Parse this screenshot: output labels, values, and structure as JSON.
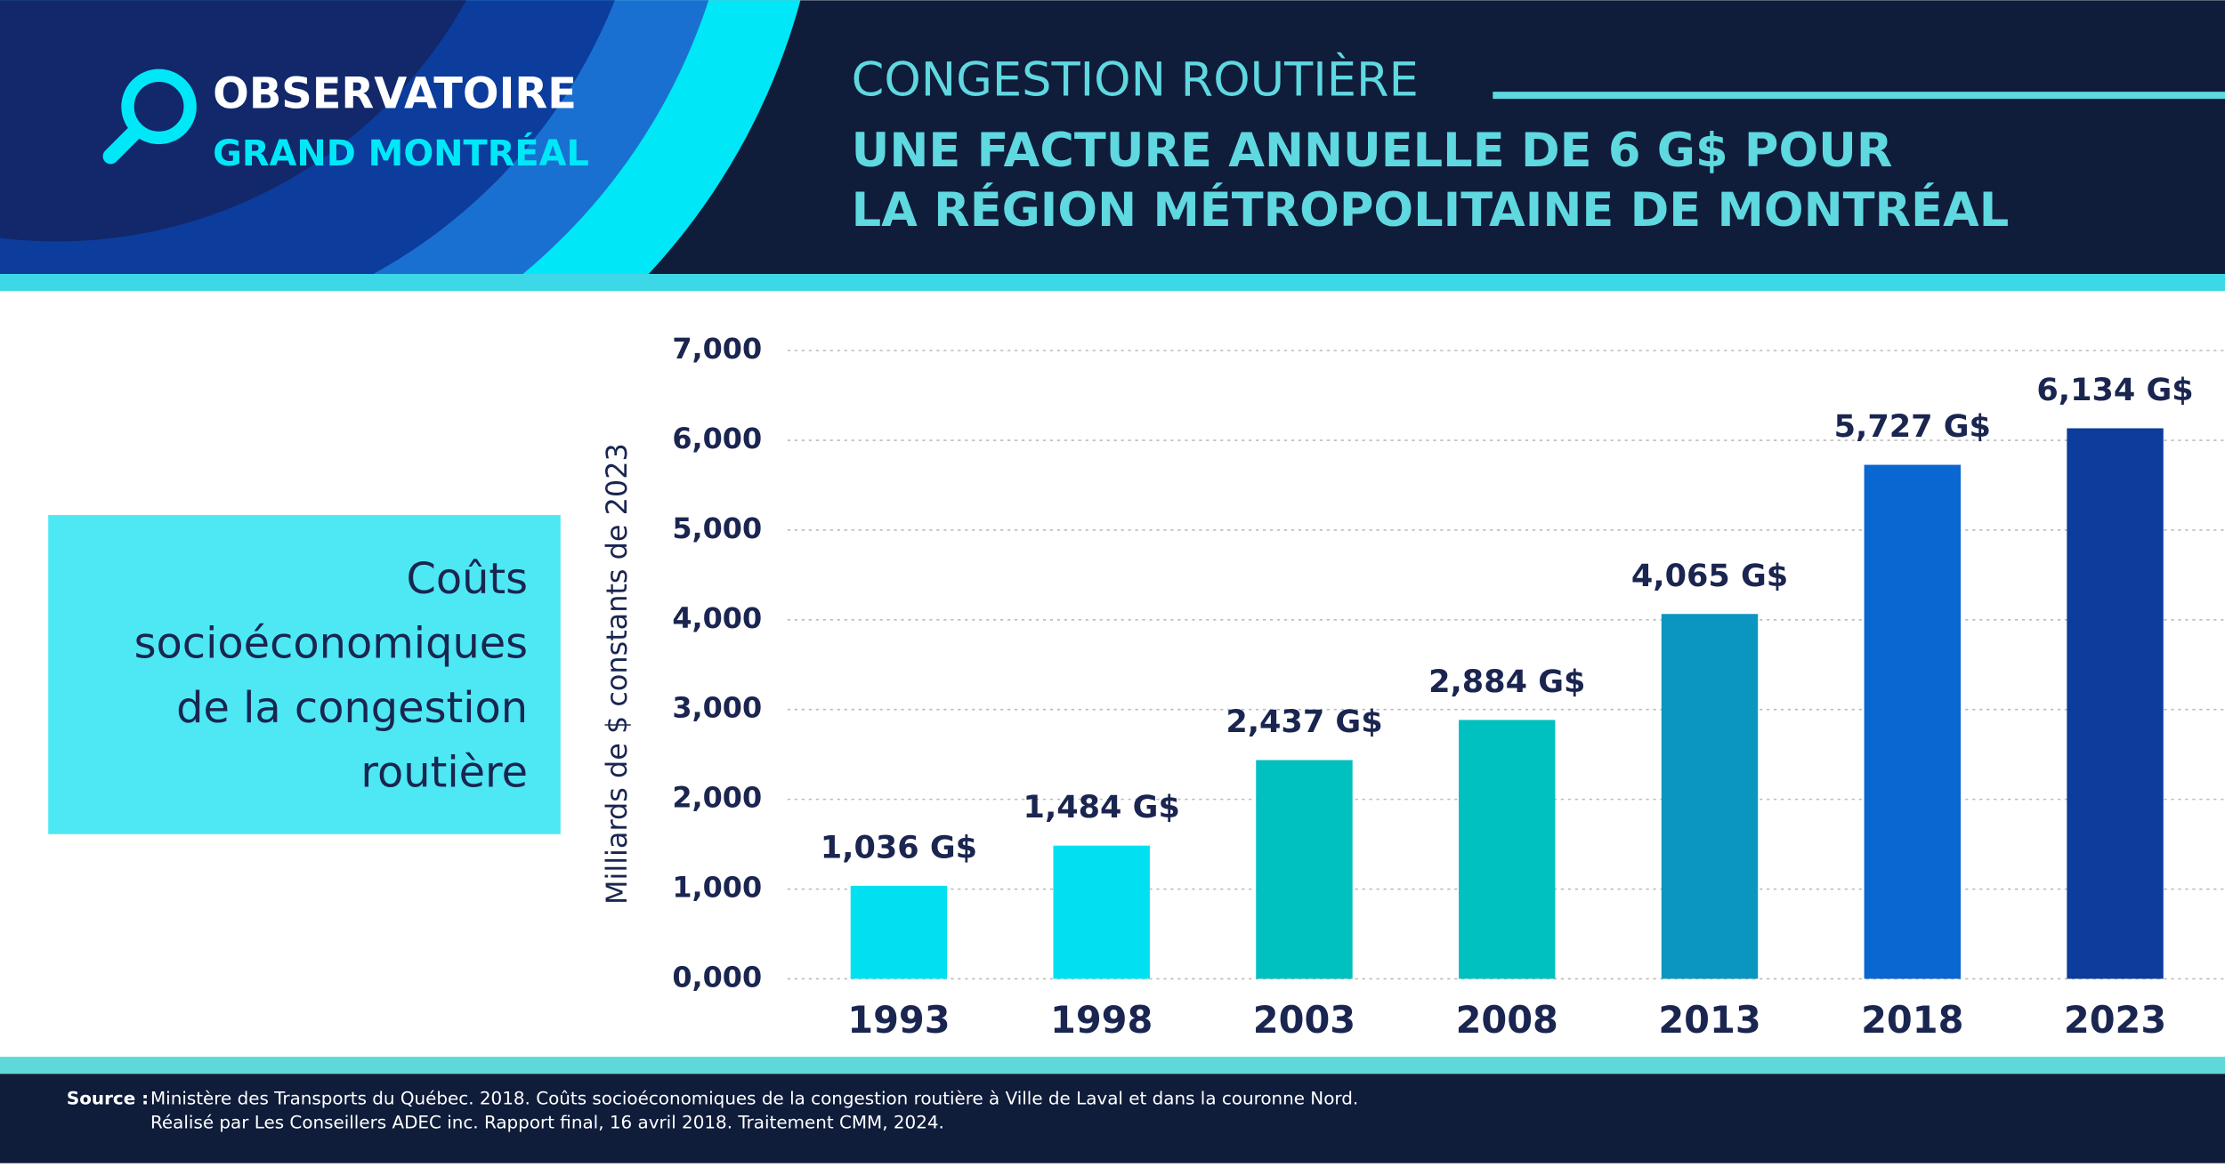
{
  "header": {
    "logo_line1": "OBSERVATOIRE",
    "logo_line2": "GRAND MONTRÉAL",
    "kicker": "CONGESTION ROUTIÈRE",
    "headline": [
      "UNE FACTURE ANNUELLE DE 6 G$ POUR",
      "LA RÉGION MÉTROPOLITAINE DE MONTRÉAL"
    ]
  },
  "callout": [
    "Coûts",
    "socioéconomiques",
    "de la congestion",
    "routière"
  ],
  "chart_data": {
    "type": "bar",
    "y_label": "Milliards de $ constants de 2023",
    "categories": [
      "1993",
      "1998",
      "2003",
      "2008",
      "2013",
      "2018",
      "2023"
    ],
    "values": [
      1.036,
      1.484,
      2.437,
      2.884,
      4.065,
      5.727,
      6.134
    ],
    "value_labels": [
      "1,036 G$",
      "1,484 G$",
      "2,437 G$",
      "2,884 G$",
      "4,065 G$",
      "5,727 G$",
      "6,134 G$"
    ],
    "colors": [
      "#00e0f0",
      "#00e0f0",
      "#00c0c0",
      "#00c0c0",
      "#0a96c0",
      "#0a66d0",
      "#0c3c9c"
    ],
    "ylim": [
      0,
      7
    ],
    "yticks": [
      {
        "value": 0,
        "label": "0,000"
      },
      {
        "value": 1,
        "label": "1,000"
      },
      {
        "value": 2,
        "label": "2,000"
      },
      {
        "value": 3,
        "label": "3,000"
      },
      {
        "value": 4,
        "label": "4,000"
      },
      {
        "value": 5,
        "label": "5,000"
      },
      {
        "value": 6,
        "label": "6,000"
      },
      {
        "value": 7,
        "label": "7,000"
      }
    ],
    "grid": true
  },
  "footer": {
    "source_label": "Source :",
    "lines": [
      "Ministère des Transports du Québec. 2018. Coûts socioéconomiques de la congestion routière à Ville de Laval et dans la couronne Nord.",
      "Réalisé par Les Conseillers ADEC inc. Rapport final, 16 avril 2018. Traitement CMM, 2024."
    ]
  }
}
